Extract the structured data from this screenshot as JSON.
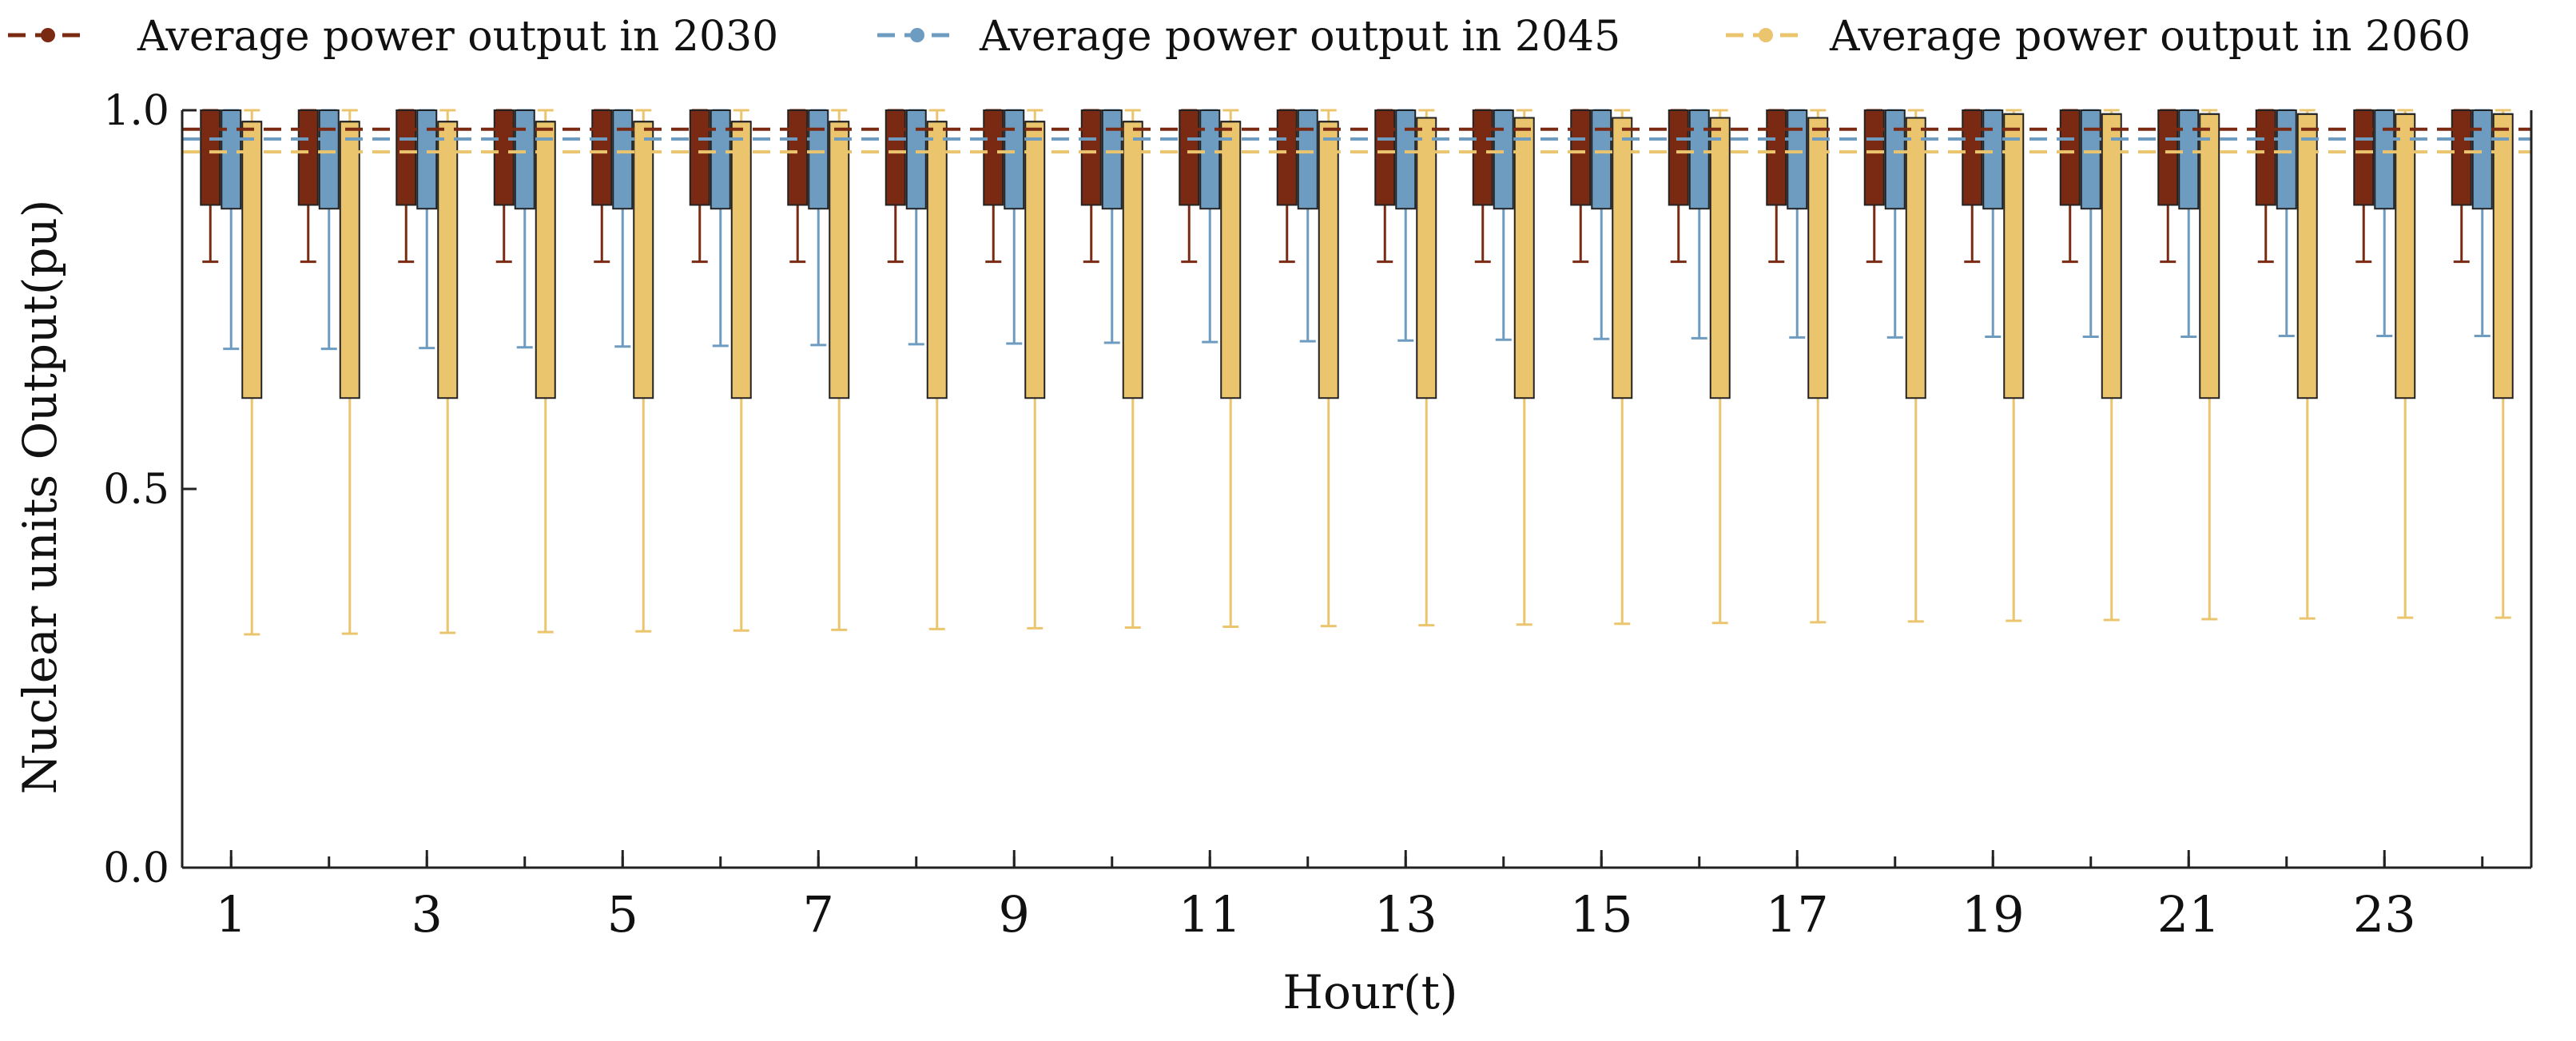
{
  "chart_data": {
    "type": "box",
    "xlabel": "Hour(t)",
    "ylabel": "Nuclear units Output(pu)",
    "ylim": [
      0,
      1
    ],
    "yticks": [
      0.0,
      0.5,
      1.0
    ],
    "ytick_labels": [
      "0.0",
      "0.5",
      "1.0"
    ],
    "xticks": [
      1,
      3,
      5,
      7,
      9,
      11,
      13,
      15,
      17,
      19,
      21,
      23
    ],
    "xtick_labels": [
      "1",
      "3",
      "5",
      "7",
      "9",
      "11",
      "13",
      "15",
      "17",
      "19",
      "21",
      "23"
    ],
    "hours": [
      1,
      2,
      3,
      4,
      5,
      6,
      7,
      8,
      9,
      10,
      11,
      12,
      13,
      14,
      15,
      16,
      17,
      18,
      19,
      20,
      21,
      22,
      23,
      24
    ],
    "legend": [
      "Average power output in 2030",
      "Average power output in 2045",
      "Average power output in 2060"
    ],
    "series": [
      {
        "name": "2030",
        "color": "#7a2a12",
        "whisker_low": [
          0.8,
          0.8,
          0.8,
          0.8,
          0.8,
          0.8,
          0.8,
          0.8,
          0.8,
          0.8,
          0.8,
          0.8,
          0.8,
          0.8,
          0.8,
          0.8,
          0.8,
          0.8,
          0.8,
          0.8,
          0.8,
          0.8,
          0.8,
          0.8
        ],
        "q1": [
          0.875,
          0.875,
          0.875,
          0.875,
          0.875,
          0.875,
          0.875,
          0.875,
          0.875,
          0.875,
          0.875,
          0.875,
          0.875,
          0.875,
          0.875,
          0.875,
          0.875,
          0.875,
          0.875,
          0.875,
          0.875,
          0.875,
          0.875,
          0.875
        ],
        "median": [
          1.0,
          1.0,
          1.0,
          1.0,
          1.0,
          1.0,
          1.0,
          1.0,
          1.0,
          1.0,
          1.0,
          1.0,
          1.0,
          1.0,
          1.0,
          1.0,
          1.0,
          1.0,
          1.0,
          1.0,
          1.0,
          1.0,
          1.0,
          1.0
        ],
        "q3": [
          1.0,
          1.0,
          1.0,
          1.0,
          1.0,
          1.0,
          1.0,
          1.0,
          1.0,
          1.0,
          1.0,
          1.0,
          1.0,
          1.0,
          1.0,
          1.0,
          1.0,
          1.0,
          1.0,
          1.0,
          1.0,
          1.0,
          1.0,
          1.0
        ],
        "whisker_high": [
          1.0,
          1.0,
          1.0,
          1.0,
          1.0,
          1.0,
          1.0,
          1.0,
          1.0,
          1.0,
          1.0,
          1.0,
          1.0,
          1.0,
          1.0,
          1.0,
          1.0,
          1.0,
          1.0,
          1.0,
          1.0,
          1.0,
          1.0,
          1.0
        ],
        "average": 0.975
      },
      {
        "name": "2045",
        "color": "#6e9bc0",
        "whisker_low": [
          0.685,
          0.685,
          0.686,
          0.687,
          0.688,
          0.689,
          0.69,
          0.691,
          0.692,
          0.693,
          0.694,
          0.695,
          0.696,
          0.697,
          0.698,
          0.699,
          0.7,
          0.7,
          0.701,
          0.701,
          0.701,
          0.702,
          0.702,
          0.702
        ],
        "q1": [
          0.87,
          0.87,
          0.87,
          0.87,
          0.87,
          0.87,
          0.87,
          0.87,
          0.87,
          0.87,
          0.87,
          0.87,
          0.87,
          0.87,
          0.87,
          0.87,
          0.87,
          0.87,
          0.87,
          0.87,
          0.87,
          0.87,
          0.87,
          0.87
        ],
        "median": [
          1.0,
          1.0,
          1.0,
          1.0,
          1.0,
          1.0,
          1.0,
          1.0,
          1.0,
          1.0,
          1.0,
          1.0,
          1.0,
          1.0,
          1.0,
          1.0,
          1.0,
          1.0,
          1.0,
          1.0,
          1.0,
          1.0,
          1.0,
          1.0
        ],
        "q3": [
          1.0,
          1.0,
          1.0,
          1.0,
          1.0,
          1.0,
          1.0,
          1.0,
          1.0,
          1.0,
          1.0,
          1.0,
          1.0,
          1.0,
          1.0,
          1.0,
          1.0,
          1.0,
          1.0,
          1.0,
          1.0,
          1.0,
          1.0,
          1.0
        ],
        "whisker_high": [
          1.0,
          1.0,
          1.0,
          1.0,
          1.0,
          1.0,
          1.0,
          1.0,
          1.0,
          1.0,
          1.0,
          1.0,
          1.0,
          1.0,
          1.0,
          1.0,
          1.0,
          1.0,
          1.0,
          1.0,
          1.0,
          1.0,
          1.0,
          1.0
        ],
        "average": 0.962
      },
      {
        "name": "2060",
        "color": "#ebc56e",
        "whisker_low": [
          0.308,
          0.309,
          0.31,
          0.311,
          0.312,
          0.313,
          0.314,
          0.315,
          0.316,
          0.317,
          0.318,
          0.319,
          0.32,
          0.321,
          0.322,
          0.323,
          0.324,
          0.325,
          0.326,
          0.327,
          0.328,
          0.329,
          0.33,
          0.33
        ],
        "q1": [
          0.62,
          0.62,
          0.62,
          0.62,
          0.62,
          0.62,
          0.62,
          0.62,
          0.62,
          0.62,
          0.62,
          0.62,
          0.62,
          0.62,
          0.62,
          0.62,
          0.62,
          0.62,
          0.62,
          0.62,
          0.62,
          0.62,
          0.62,
          0.62
        ],
        "median": [
          0.985,
          0.985,
          0.985,
          0.985,
          0.985,
          0.985,
          0.985,
          0.985,
          0.985,
          0.985,
          0.985,
          0.985,
          0.99,
          0.99,
          0.99,
          0.99,
          0.99,
          0.99,
          0.995,
          0.995,
          0.995,
          0.995,
          0.995,
          0.995
        ],
        "q3": [
          0.985,
          0.985,
          0.985,
          0.985,
          0.985,
          0.985,
          0.985,
          0.985,
          0.985,
          0.985,
          0.985,
          0.985,
          0.99,
          0.99,
          0.99,
          0.99,
          0.99,
          0.99,
          0.995,
          0.995,
          0.995,
          0.995,
          0.995,
          0.995
        ],
        "whisker_high": [
          1.0,
          1.0,
          1.0,
          1.0,
          1.0,
          1.0,
          1.0,
          1.0,
          1.0,
          1.0,
          1.0,
          1.0,
          1.0,
          1.0,
          1.0,
          1.0,
          1.0,
          1.0,
          1.0,
          1.0,
          1.0,
          1.0,
          1.0,
          1.0
        ],
        "average": 0.945
      }
    ]
  }
}
